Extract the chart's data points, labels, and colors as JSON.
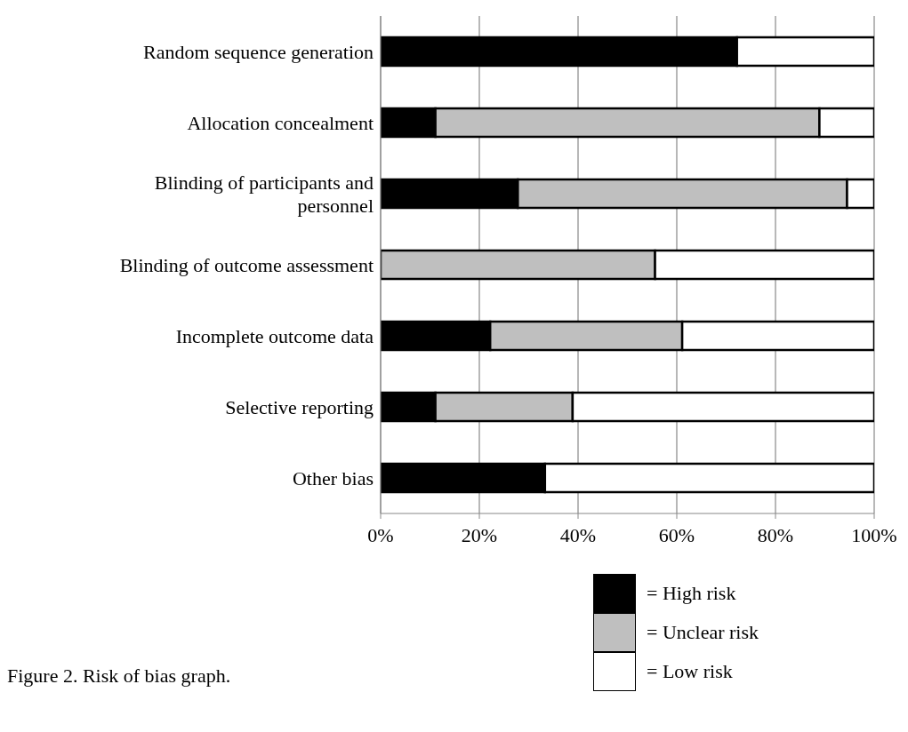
{
  "chart_data": {
    "type": "bar",
    "orientation": "horizontal",
    "stacked": true,
    "categories": [
      "Random sequence generation",
      "Allocation concealment",
      "Blinding of participants and personnel",
      "Blinding of outcome assessment",
      "Incomplete outcome data",
      "Selective reporting",
      "Other bias"
    ],
    "series": [
      {
        "name": "= High risk",
        "color": "#000000",
        "values": [
          72.2,
          11.1,
          27.8,
          0,
          22.2,
          11.1,
          33.3
        ]
      },
      {
        "name": "= Unclear risk",
        "color": "#bfbfbf",
        "values": [
          0,
          77.8,
          66.7,
          55.6,
          38.9,
          27.8,
          0
        ]
      },
      {
        "name": "= Low risk",
        "color": "#ffffff",
        "values": [
          27.8,
          11.1,
          5.6,
          44.4,
          38.9,
          61.1,
          66.7
        ]
      }
    ],
    "xlim": [
      0,
      100
    ],
    "xticks": [
      {
        "value": 0,
        "label": "0%"
      },
      {
        "value": 20,
        "label": "20%"
      },
      {
        "value": 40,
        "label": "40%"
      },
      {
        "value": 60,
        "label": "60%"
      },
      {
        "value": 80,
        "label": "80%"
      },
      {
        "value": 100,
        "label": "100%"
      }
    ],
    "grid": "x",
    "legend": "bottom right",
    "annotations": [
      "Figure 2. Risk of bias graph."
    ]
  }
}
